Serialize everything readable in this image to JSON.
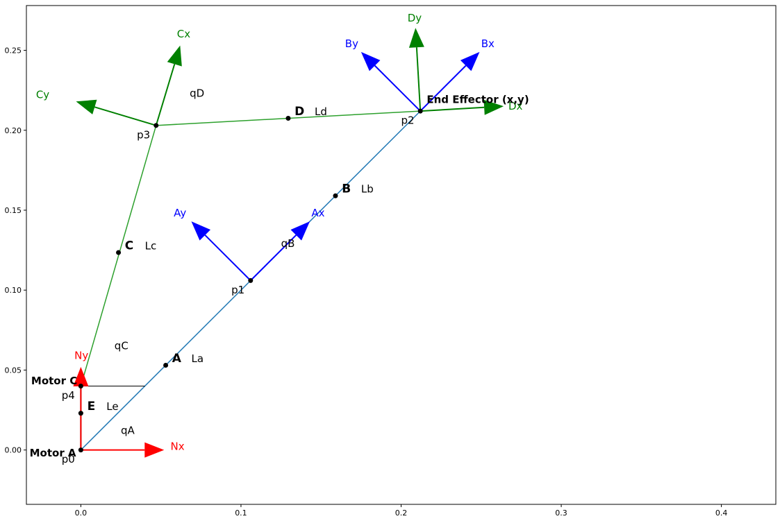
{
  "chart_data": {
    "type": "diagram-plot",
    "title": "",
    "xlabel": "",
    "ylabel": "",
    "xlim": [
      -0.034,
      0.434
    ],
    "ylim": [
      -0.034,
      0.278
    ],
    "xticks": [
      0.0,
      0.1,
      0.2,
      0.3,
      0.4
    ],
    "yticks": [
      0.0,
      0.05,
      0.1,
      0.15,
      0.2,
      0.25
    ],
    "xtick_labels": [
      "0.0",
      "0.1",
      "0.2",
      "0.3",
      "0.4"
    ],
    "ytick_labels": [
      "0.00",
      "0.05",
      "0.10",
      "0.15",
      "0.20",
      "0.25"
    ],
    "grid": false,
    "colors": {
      "link_ab": "#1f77b4",
      "link_cd": "#2ca02c",
      "frame_red": "#ff0000",
      "frame_blue": "#0000ff",
      "frame_green": "#008000",
      "black": "#000000"
    },
    "segments": [
      {
        "name": "link-a",
        "color": "link_ab",
        "from": [
          0.0,
          0.0
        ],
        "to": [
          0.106,
          0.106
        ],
        "width": 1.5
      },
      {
        "name": "link-b",
        "color": "link_ab",
        "from": [
          0.106,
          0.106
        ],
        "to": [
          0.212,
          0.212
        ],
        "width": 1.5
      },
      {
        "name": "link-e",
        "color": "black",
        "from": [
          0.0,
          0.0
        ],
        "to": [
          0.0,
          0.04
        ],
        "width": 2
      },
      {
        "name": "link-c",
        "color": "link_cd",
        "from": [
          0.0,
          0.04
        ],
        "to": [
          0.047,
          0.203
        ],
        "width": 1.5
      },
      {
        "name": "link-d",
        "color": "link_cd",
        "from": [
          0.047,
          0.203
        ],
        "to": [
          0.212,
          0.212
        ],
        "width": 1.5
      },
      {
        "name": "reference-line",
        "color": "black",
        "from": [
          0.0,
          0.04
        ],
        "to": [
          0.04,
          0.04
        ],
        "width": 1
      }
    ],
    "arrows": [
      {
        "name": "nx",
        "color": "frame_red",
        "from": [
          0.0,
          0.0
        ],
        "to": [
          0.052,
          0.0
        ],
        "label": "Nx",
        "label_at": [
          0.056,
          0.0
        ]
      },
      {
        "name": "ny",
        "color": "frame_red",
        "from": [
          0.0,
          0.0
        ],
        "to": [
          0.0,
          0.052
        ],
        "label": "Ny",
        "label_at": [
          -0.004,
          0.057
        ]
      },
      {
        "name": "ax",
        "color": "frame_blue",
        "from": [
          0.106,
          0.106
        ],
        "to": [
          0.143,
          0.143
        ],
        "label": "Ax",
        "label_at": [
          0.144,
          0.146
        ]
      },
      {
        "name": "ay",
        "color": "frame_blue",
        "from": [
          0.106,
          0.106
        ],
        "to": [
          0.069,
          0.143
        ],
        "label": "Ay",
        "label_at": [
          0.058,
          0.146
        ]
      },
      {
        "name": "bx",
        "color": "frame_blue",
        "from": [
          0.212,
          0.212
        ],
        "to": [
          0.249,
          0.249
        ],
        "label": "Bx",
        "label_at": [
          0.25,
          0.252
        ]
      },
      {
        "name": "by",
        "color": "frame_blue",
        "from": [
          0.212,
          0.212
        ],
        "to": [
          0.175,
          0.249
        ],
        "label": "By",
        "label_at": [
          0.165,
          0.252
        ]
      },
      {
        "name": "cx",
        "color": "frame_green",
        "from": [
          0.047,
          0.203
        ],
        "to": [
          0.062,
          0.253
        ],
        "label": "Cx",
        "label_at": [
          0.06,
          0.258
        ]
      },
      {
        "name": "cy",
        "color": "frame_green",
        "from": [
          0.047,
          0.203
        ],
        "to": [
          -0.003,
          0.218
        ],
        "label": "Cy",
        "label_at": [
          -0.028,
          0.22
        ]
      },
      {
        "name": "dx",
        "color": "frame_green",
        "from": [
          0.212,
          0.212
        ],
        "to": [
          0.264,
          0.215
        ],
        "label": "Dx",
        "label_at": [
          0.267,
          0.213
        ]
      },
      {
        "name": "dy",
        "color": "frame_green",
        "from": [
          0.212,
          0.212
        ],
        "to": [
          0.209,
          0.264
        ],
        "label": "Dy",
        "label_at": [
          0.204,
          0.268
        ]
      }
    ],
    "points": [
      {
        "name": "p0",
        "at": [
          0.0,
          0.0
        ]
      },
      {
        "name": "p1",
        "at": [
          0.106,
          0.106
        ]
      },
      {
        "name": "p2",
        "at": [
          0.212,
          0.212
        ]
      },
      {
        "name": "p3",
        "at": [
          0.047,
          0.203
        ]
      },
      {
        "name": "p4",
        "at": [
          0.0,
          0.04
        ]
      },
      {
        "name": "A",
        "at": [
          0.053,
          0.053
        ]
      },
      {
        "name": "B",
        "at": [
          0.159,
          0.159
        ]
      },
      {
        "name": "C",
        "at": [
          0.0235,
          0.1235
        ]
      },
      {
        "name": "D",
        "at": [
          0.1295,
          0.2075
        ]
      },
      {
        "name": "E",
        "at": [
          0.0,
          0.023
        ]
      }
    ],
    "labels": [
      {
        "text": "p0",
        "at": [
          -0.012,
          -0.008
        ],
        "style": "lbl",
        "color": "black"
      },
      {
        "text": "p1",
        "at": [
          0.094,
          0.098
        ],
        "style": "lbl",
        "color": "black"
      },
      {
        "text": "p2",
        "at": [
          0.2,
          0.204
        ],
        "style": "lbl",
        "color": "black"
      },
      {
        "text": "p3",
        "at": [
          0.035,
          0.195
        ],
        "style": "lbl",
        "color": "black"
      },
      {
        "text": "p4",
        "at": [
          -0.012,
          0.032
        ],
        "style": "lbl",
        "color": "black"
      },
      {
        "text": "A",
        "at": [
          0.057,
          0.055
        ],
        "style": "lbl-big",
        "color": "black"
      },
      {
        "text": "La",
        "at": [
          0.069,
          0.055
        ],
        "style": "lbl",
        "color": "black"
      },
      {
        "text": "B",
        "at": [
          0.163,
          0.161
        ],
        "style": "lbl-big",
        "color": "black"
      },
      {
        "text": "Lb",
        "at": [
          0.175,
          0.161
        ],
        "style": "lbl",
        "color": "black"
      },
      {
        "text": "C",
        "at": [
          0.0275,
          0.1255
        ],
        "style": "lbl-big",
        "color": "black"
      },
      {
        "text": "Lc",
        "at": [
          0.04,
          0.1255
        ],
        "style": "lbl",
        "color": "black"
      },
      {
        "text": "D",
        "at": [
          0.1335,
          0.2095
        ],
        "style": "lbl-big",
        "color": "black"
      },
      {
        "text": "Ld",
        "at": [
          0.146,
          0.2095
        ],
        "style": "lbl",
        "color": "black"
      },
      {
        "text": "E",
        "at": [
          0.004,
          0.025
        ],
        "style": "lbl-big",
        "color": "black"
      },
      {
        "text": "Le",
        "at": [
          0.016,
          0.025
        ],
        "style": "lbl",
        "color": "black"
      },
      {
        "text": "qA",
        "at": [
          0.025,
          0.01
        ],
        "style": "lbl",
        "color": "black"
      },
      {
        "text": "qB",
        "at": [
          0.125,
          0.127
        ],
        "style": "lbl",
        "color": "black"
      },
      {
        "text": "qC",
        "at": [
          0.021,
          0.063
        ],
        "style": "lbl",
        "color": "black"
      },
      {
        "text": "qD",
        "at": [
          0.068,
          0.221
        ],
        "style": "lbl",
        "color": "black"
      },
      {
        "text": "Motor A",
        "at": [
          -0.032,
          -0.004
        ],
        "style": "lbl-bold",
        "color": "black"
      },
      {
        "text": "Motor C",
        "at": [
          -0.031,
          0.041
        ],
        "style": "lbl-bold",
        "color": "black"
      },
      {
        "text": "End Effector (x,y)",
        "at": [
          0.216,
          0.217
        ],
        "style": "lbl-bold",
        "color": "black"
      }
    ]
  }
}
